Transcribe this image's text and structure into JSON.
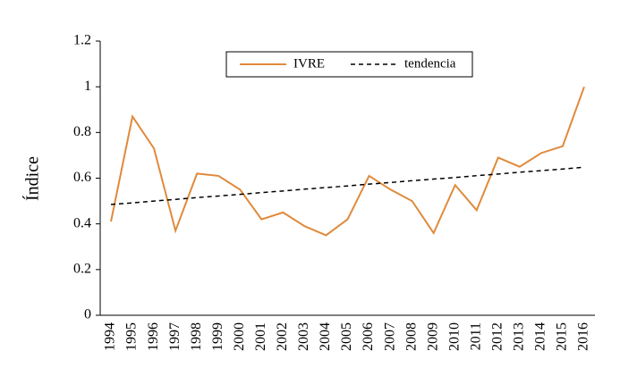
{
  "chart_data": {
    "type": "line",
    "ylabel": "Índice",
    "categories": [
      "1994",
      "1995",
      "1996",
      "1997",
      "1998",
      "1999",
      "2000",
      "2001",
      "2002",
      "2003",
      "2004",
      "2005",
      "2006",
      "2007",
      "2008",
      "2009",
      "2010",
      "2011",
      "2012",
      "2013",
      "2014",
      "2015",
      "2016"
    ],
    "series": [
      {
        "name": "IVRE",
        "color": "#e08a3c",
        "dash": false,
        "values": [
          0.41,
          0.87,
          0.73,
          0.37,
          0.62,
          0.61,
          0.55,
          0.42,
          0.45,
          0.39,
          0.35,
          0.42,
          0.61,
          0.55,
          0.5,
          0.36,
          0.57,
          0.46,
          0.69,
          0.65,
          0.71,
          0.74,
          1.0
        ]
      },
      {
        "name": "tendencia",
        "color": "#000000",
        "dash": true,
        "values": [
          0.485,
          0.492,
          0.5,
          0.507,
          0.515,
          0.522,
          0.529,
          0.537,
          0.544,
          0.552,
          0.559,
          0.566,
          0.574,
          0.581,
          0.589,
          0.596,
          0.603,
          0.611,
          0.618,
          0.626,
          0.633,
          0.64,
          0.648
        ]
      }
    ],
    "ylim": [
      0,
      1.2
    ],
    "yticks": [
      0,
      0.2,
      0.4,
      0.6,
      0.8,
      1,
      1.2
    ],
    "grid": false,
    "legend": "top"
  }
}
